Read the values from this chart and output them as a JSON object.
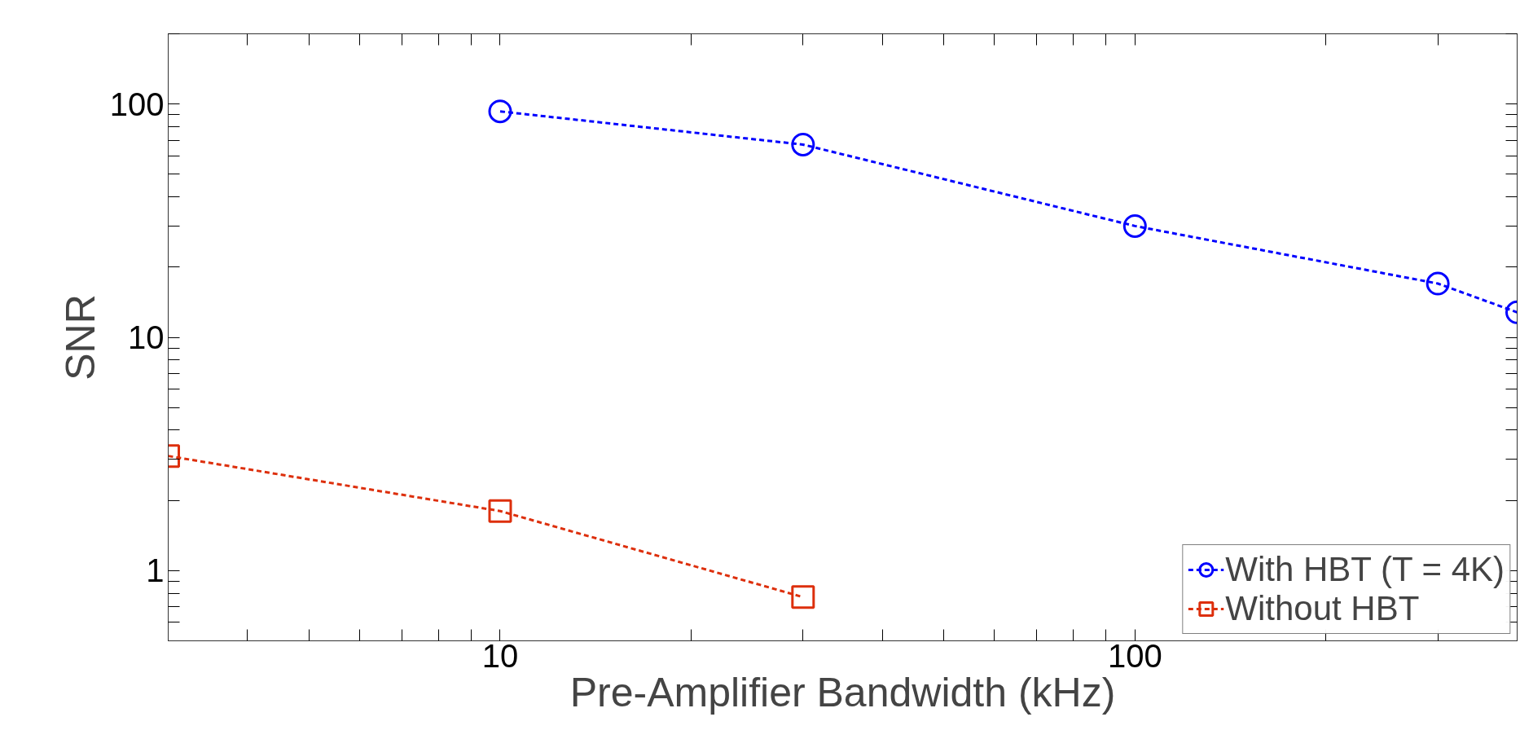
{
  "chart_data": {
    "type": "line",
    "xlabel": "Pre-Amplifier Bandwidth (kHz)",
    "ylabel": "SNR",
    "log": "xy",
    "xlim": [
      3,
      400
    ],
    "ylim": [
      0.5,
      200
    ],
    "xticks": [
      {
        "value": 3,
        "label": null
      },
      {
        "value": 4,
        "label": null
      },
      {
        "value": 5,
        "label": null
      },
      {
        "value": 6,
        "label": null
      },
      {
        "value": 7,
        "label": null
      },
      {
        "value": 8,
        "label": null
      },
      {
        "value": 9,
        "label": null
      },
      10,
      {
        "value": 20,
        "label": null
      },
      {
        "value": 30,
        "label": null
      },
      {
        "value": 40,
        "label": null
      },
      {
        "value": 50,
        "label": null
      },
      {
        "value": 60,
        "label": null
      },
      {
        "value": 70,
        "label": null
      },
      {
        "value": 80,
        "label": null
      },
      {
        "value": 90,
        "label": null
      },
      100,
      {
        "value": 200,
        "label": null
      },
      {
        "value": 300,
        "label": null
      },
      {
        "value": 400,
        "label": null
      }
    ],
    "yticks": [
      {
        "value": 0.6,
        "label": null
      },
      {
        "value": 0.7,
        "label": null
      },
      {
        "value": 0.8,
        "label": null
      },
      {
        "value": 0.9,
        "label": null
      },
      1,
      {
        "value": 2,
        "label": null
      },
      {
        "value": 3,
        "label": null
      },
      {
        "value": 4,
        "label": null
      },
      {
        "value": 5,
        "label": null
      },
      {
        "value": 6,
        "label": null
      },
      {
        "value": 7,
        "label": null
      },
      {
        "value": 8,
        "label": null
      },
      {
        "value": 9,
        "label": null
      },
      10,
      {
        "value": 20,
        "label": null
      },
      {
        "value": 30,
        "label": null
      },
      {
        "value": 40,
        "label": null
      },
      {
        "value": 50,
        "label": null
      },
      {
        "value": 60,
        "label": null
      },
      {
        "value": 70,
        "label": null
      },
      {
        "value": 80,
        "label": null
      },
      {
        "value": 90,
        "label": null
      },
      100,
      {
        "value": 200,
        "label": null
      }
    ],
    "grid": false,
    "legend": "bottom right",
    "line_style": "dashed",
    "series": [
      {
        "name": "With HBT (T = 4K)",
        "color": "#0000ff",
        "marker": "circle",
        "x": [
          10,
          30,
          100,
          300,
          400
        ],
        "values": [
          93,
          67,
          30,
          17,
          12.8
        ]
      },
      {
        "name": "Without HBT",
        "color": "#dd2f0c",
        "marker": "square",
        "x": [
          3,
          10,
          30
        ],
        "values": [
          3.1,
          1.8,
          0.77
        ]
      }
    ]
  }
}
